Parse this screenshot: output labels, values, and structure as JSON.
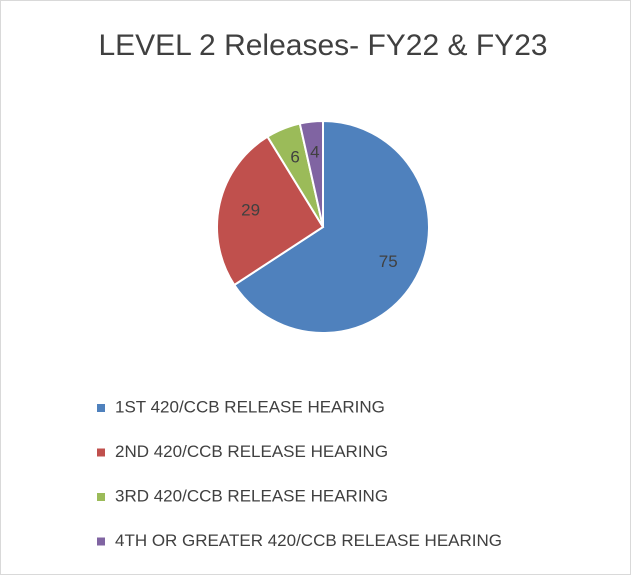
{
  "chart_data": {
    "type": "pie",
    "title": "LEVEL 2 Releases- FY22 & FY23",
    "categories": [
      "1ST 420/CCB RELEASE HEARING",
      "2ND 420/CCB RELEASE HEARING",
      "3RD 420/CCB RELEASE HEARING",
      "4TH OR GREATER 420/CCB RELEASE HEARING"
    ],
    "values": [
      75,
      29,
      6,
      4
    ],
    "colors": [
      "#4f81bd",
      "#c0504d",
      "#9bbb59",
      "#8064a2"
    ],
    "legend": "bottom"
  }
}
